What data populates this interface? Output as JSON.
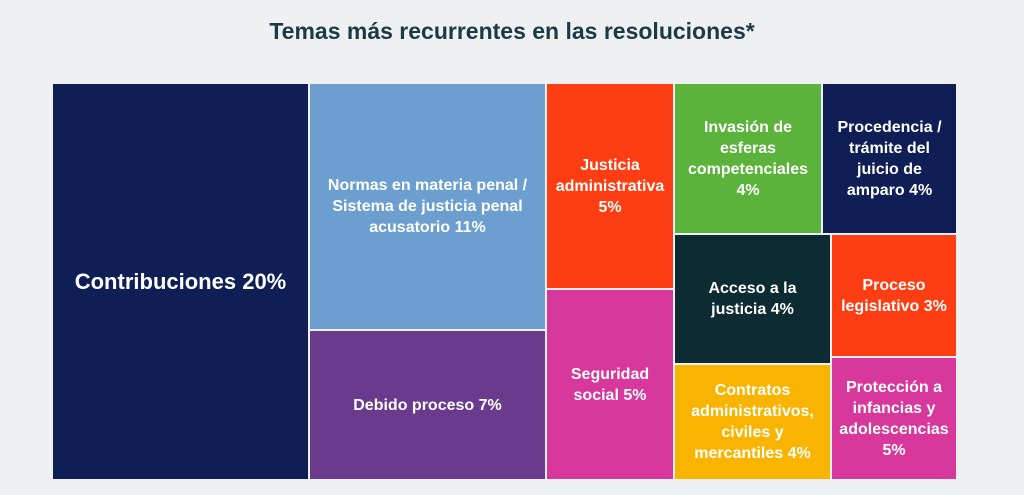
{
  "chart_data": {
    "type": "treemap",
    "title": "Temas más recurrentes en las resoluciones*",
    "categories": [
      "Contribuciones",
      "Normas en materia penal / Sistema de justicia penal acusatorio",
      "Debido proceso",
      "Justicia administrativa",
      "Seguridad social",
      "Invasión de esferas competenciales",
      "Procedencia / trámite del juicio de amparo",
      "Acceso a la justicia",
      "Proceso legislativo",
      "Contratos administrativos, civiles y mercantiles",
      "Protección a infancias y adolescencias"
    ],
    "values": [
      20,
      11,
      7,
      5,
      5,
      4,
      4,
      4,
      3,
      4,
      5
    ],
    "value_labels": [
      "20%",
      "11%",
      "7%",
      "5%",
      "5%",
      "4%",
      "4%",
      "4%",
      "3%",
      "4%",
      "5%"
    ],
    "colors": [
      "#0f1f56",
      "#6c9fcf",
      "#6a3a8c",
      "#ff3d12",
      "#d8379b",
      "#5cb33c",
      "#0f1f56",
      "#0c2b33",
      "#ff3d12",
      "#f8b400",
      "#d8379b"
    ]
  }
}
